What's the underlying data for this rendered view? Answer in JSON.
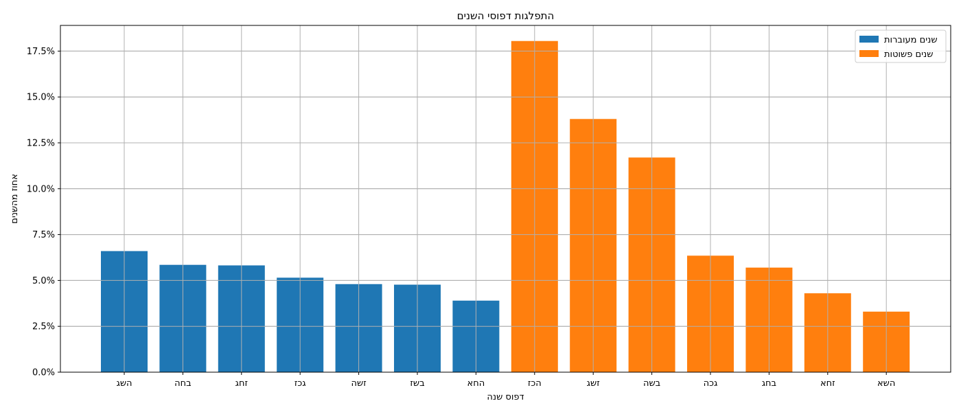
{
  "chart_data": {
    "type": "bar",
    "title": "התפלגות דפוסי השנים",
    "xlabel": "דפוס שנה",
    "ylabel": "אחוז מהשנים",
    "categories": [
      "השג",
      "בחה",
      "זחג",
      "גכז",
      "זשה",
      "בשז",
      "החא",
      "הכז",
      "זשג",
      "בשה",
      "גכה",
      "בחג",
      "זחא",
      "השא"
    ],
    "series": [
      {
        "name": "שנים מעוברות",
        "color": "#1f77b4",
        "values": [
          6.6,
          5.85,
          5.82,
          5.15,
          4.8,
          4.77,
          3.9,
          null,
          null,
          null,
          null,
          null,
          null,
          null
        ]
      },
      {
        "name": "שנים פשוטות",
        "color": "#ff7f0e",
        "values": [
          null,
          null,
          null,
          null,
          null,
          null,
          null,
          18.05,
          13.8,
          11.7,
          6.35,
          5.7,
          4.3,
          3.3
        ]
      }
    ],
    "ylim": [
      0,
      18.9
    ],
    "yticks": [
      "0.0%",
      "2.5%",
      "5.0%",
      "7.5%",
      "10.0%",
      "12.5%",
      "15.0%",
      "17.5%"
    ],
    "ytick_values": [
      0,
      2.5,
      5,
      7.5,
      10,
      12.5,
      15,
      17.5
    ],
    "grid": true,
    "legend_position": "top-right"
  }
}
